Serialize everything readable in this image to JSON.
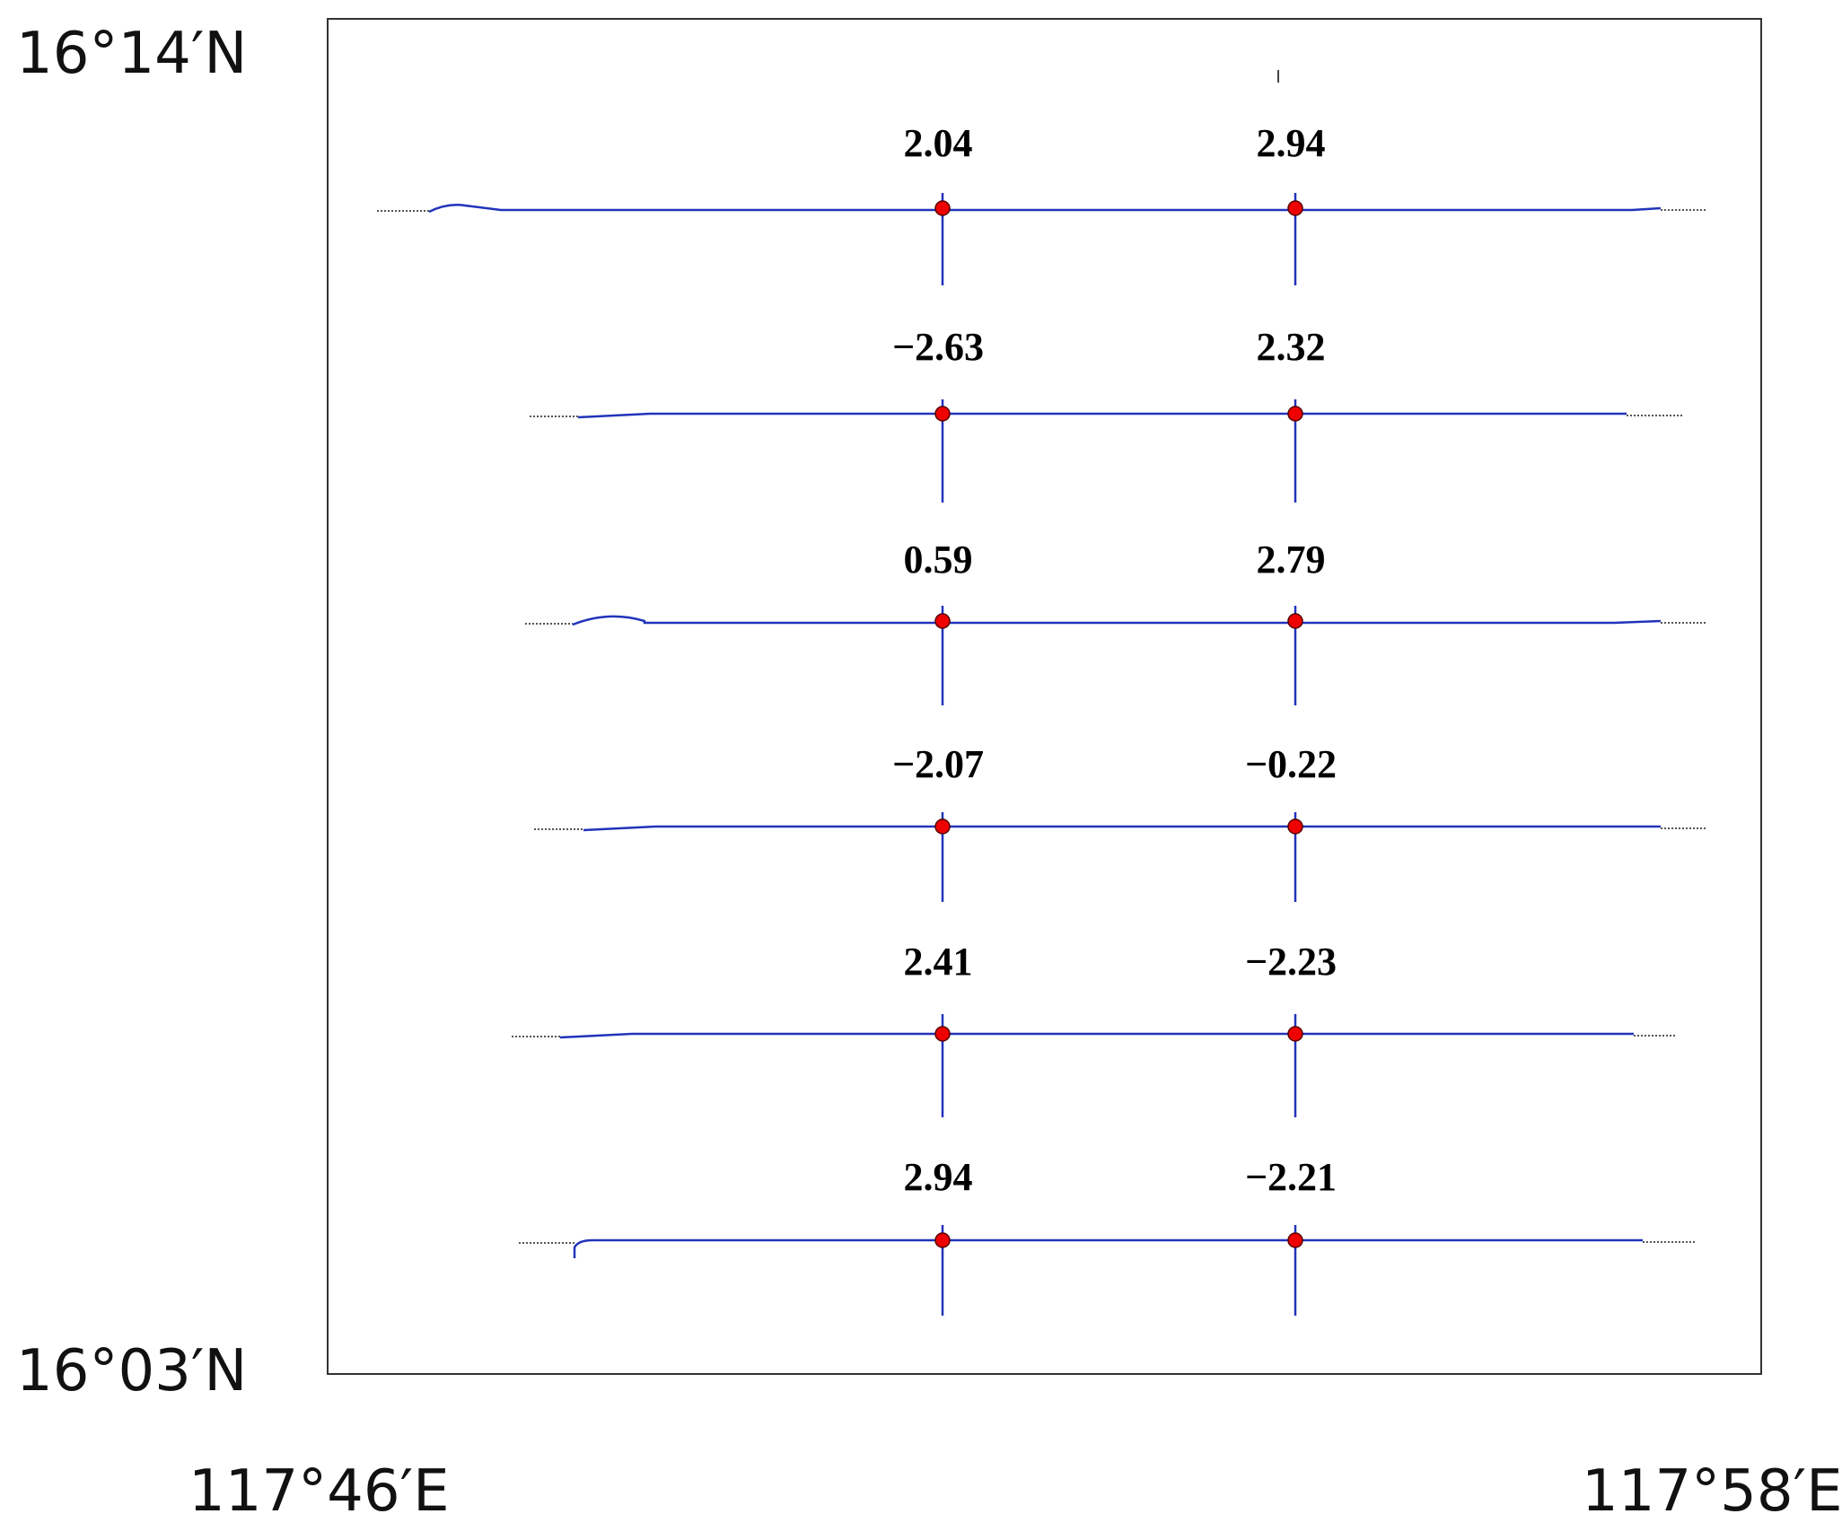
{
  "labels": {
    "lat_top": "16°14′N",
    "lat_bottom": "16°03′N",
    "lon_left": "117°46′E",
    "lon_right": "117°58′E"
  },
  "colors": {
    "track": "#2233bb",
    "marker": "#ee0000",
    "frame": "#333333"
  },
  "points": [
    {
      "row": 1,
      "col": "left",
      "value": "2.04"
    },
    {
      "row": 1,
      "col": "right",
      "value": "2.94"
    },
    {
      "row": 2,
      "col": "left",
      "value": "−2.63"
    },
    {
      "row": 2,
      "col": "right",
      "value": "2.32"
    },
    {
      "row": 3,
      "col": "left",
      "value": "0.59"
    },
    {
      "row": 3,
      "col": "right",
      "value": "2.79"
    },
    {
      "row": 4,
      "col": "left",
      "value": "−2.07"
    },
    {
      "row": 4,
      "col": "right",
      "value": "−0.22"
    },
    {
      "row": 5,
      "col": "left",
      "value": "2.41"
    },
    {
      "row": 5,
      "col": "right",
      "value": "−2.23"
    },
    {
      "row": 6,
      "col": "left",
      "value": "2.94"
    },
    {
      "row": 6,
      "col": "right",
      "value": "−2.21"
    }
  ]
}
